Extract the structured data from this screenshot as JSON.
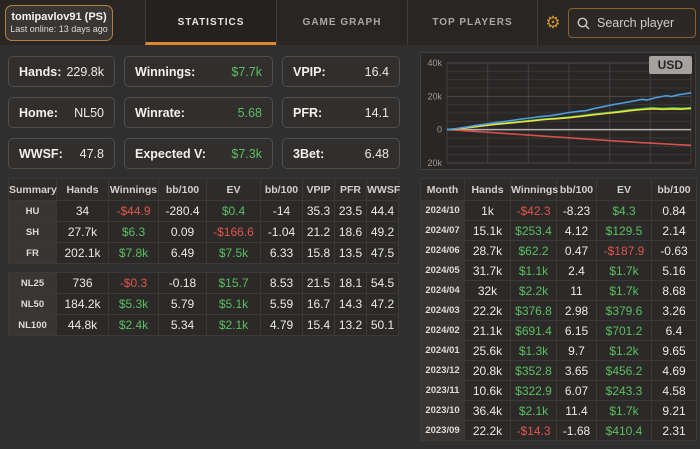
{
  "header": {
    "user": {
      "name": "tomipavlov91 (PS)",
      "last_online": "Last online: 13 days ago"
    },
    "tabs": [
      {
        "label": "STATISTICS",
        "active": true
      },
      {
        "label": "GAME GRAPH",
        "active": false
      },
      {
        "label": "TOP PLAYERS",
        "active": false
      }
    ],
    "gear_icon": "settings-gear",
    "search": {
      "placeholder": "Search player",
      "icon": "search-magnifier"
    }
  },
  "stats": [
    {
      "label": "Hands:",
      "value": "229.8k",
      "color": "white"
    },
    {
      "label": "Winnings:",
      "value": "$7.7k",
      "color": "green"
    },
    {
      "label": "VPIP:",
      "value": "16.4",
      "color": "white"
    },
    {
      "label": "Home:",
      "value": "NL50",
      "color": "white"
    },
    {
      "label": "Winrate:",
      "value": "5.68",
      "color": "green"
    },
    {
      "label": "PFR:",
      "value": "14.1",
      "color": "white"
    },
    {
      "label": "WWSF:",
      "value": "47.8",
      "color": "white"
    },
    {
      "label": "Expected V:",
      "value": "$7.3k",
      "color": "green"
    },
    {
      "label": "3Bet:",
      "value": "6.48",
      "color": "white"
    }
  ],
  "summary_table": {
    "headers": [
      "Summary",
      "Hands",
      "Winnings",
      "bb/100",
      "EV",
      "bb/100",
      "VPIP",
      "PFR",
      "WWSF"
    ],
    "money_cols": [
      2,
      4
    ],
    "blocks": [
      [
        [
          "HU",
          "34",
          "-$44.9",
          "-280.4",
          "$0.4",
          "-14",
          "35.3",
          "23.5",
          "44.4"
        ],
        [
          "SH",
          "27.7k",
          "$6.3",
          "0.09",
          "-$166.6",
          "-1.04",
          "21.2",
          "18.6",
          "49.2"
        ],
        [
          "FR",
          "202.1k",
          "$7.8k",
          "6.49",
          "$7.5k",
          "6.33",
          "15.8",
          "13.5",
          "47.5"
        ]
      ],
      [
        [
          "NL25",
          "736",
          "-$0.3",
          "-0.18",
          "$15.7",
          "8.53",
          "21.5",
          "18.1",
          "54.5"
        ],
        [
          "NL50",
          "184.2k",
          "$5.3k",
          "5.79",
          "$5.1k",
          "5.59",
          "16.7",
          "14.3",
          "47.2"
        ],
        [
          "NL100",
          "44.8k",
          "$2.4k",
          "5.34",
          "$2.1k",
          "4.79",
          "15.4",
          "13.2",
          "50.1"
        ]
      ]
    ]
  },
  "months_table": {
    "headers": [
      "Month",
      "Hands",
      "Winnings",
      "bb/100",
      "EV",
      "bb/100"
    ],
    "money_cols": [
      2,
      4
    ],
    "rows": [
      [
        "2024/10",
        "1k",
        "-$42.3",
        "-8.23",
        "$4.3",
        "0.84"
      ],
      [
        "2024/07",
        "15.1k",
        "$253.4",
        "4.12",
        "$129.5",
        "2.14"
      ],
      [
        "2024/06",
        "28.7k",
        "$62.2",
        "0.47",
        "-$187.9",
        "-0.63"
      ],
      [
        "2024/05",
        "31.7k",
        "$1.1k",
        "2.4",
        "$1.7k",
        "5.16"
      ],
      [
        "2024/04",
        "32k",
        "$2.2k",
        "11",
        "$1.7k",
        "8.68"
      ],
      [
        "2024/03",
        "22.2k",
        "$376.8",
        "2.98",
        "$379.6",
        "3.26"
      ],
      [
        "2024/02",
        "21.1k",
        "$691.4",
        "6.15",
        "$701.2",
        "6.4"
      ],
      [
        "2024/01",
        "25.6k",
        "$1.3k",
        "9.7",
        "$1.2k",
        "9.65"
      ],
      [
        "2023/12",
        "20.8k",
        "$352.8",
        "3.65",
        "$456.2",
        "4.69"
      ],
      [
        "2023/11",
        "10.6k",
        "$322.9",
        "6.07",
        "$243.3",
        "4.58"
      ],
      [
        "2023/10",
        "36.4k",
        "$2.1k",
        "11.4",
        "$1.7k",
        "9.21"
      ],
      [
        "2023/09",
        "22.2k",
        "-$14.3",
        "-1.68",
        "$410.4",
        "2.31"
      ]
    ]
  },
  "chart_data": {
    "type": "line",
    "title": "",
    "currency_badge": "USD",
    "legend": "none",
    "grid": true,
    "ylim": [
      -20000,
      40000
    ],
    "yticks": [
      {
        "label": "40k",
        "value": 40000
      },
      {
        "label": "20k",
        "value": 20000
      },
      {
        "label": "0",
        "value": 0
      },
      {
        "label": "20k",
        "value": -20000
      }
    ],
    "minor_grid_step": 5000,
    "vertical_divisions": 6,
    "series": [
      {
        "name": "red-line",
        "color": "#d5514b",
        "points": [
          [
            0,
            0
          ],
          [
            0.05,
            -400
          ],
          [
            0.1,
            -900
          ],
          [
            0.15,
            -1400
          ],
          [
            0.2,
            -1900
          ],
          [
            0.25,
            -2400
          ],
          [
            0.3,
            -2900
          ],
          [
            0.35,
            -3400
          ],
          [
            0.4,
            -3900
          ],
          [
            0.45,
            -4400
          ],
          [
            0.5,
            -4900
          ],
          [
            0.55,
            -5400
          ],
          [
            0.6,
            -5900
          ],
          [
            0.65,
            -6400
          ],
          [
            0.7,
            -6900
          ],
          [
            0.75,
            -7300
          ],
          [
            0.8,
            -7800
          ],
          [
            0.85,
            -8200
          ],
          [
            0.9,
            -8600
          ],
          [
            0.95,
            -9000
          ],
          [
            1,
            -9400
          ]
        ]
      },
      {
        "name": "green-line",
        "color": "#43b14b",
        "points": [
          [
            0,
            0
          ],
          [
            0.04,
            500
          ],
          [
            0.08,
            1200
          ],
          [
            0.12,
            2000
          ],
          [
            0.16,
            2700
          ],
          [
            0.2,
            3400
          ],
          [
            0.25,
            4100
          ],
          [
            0.3,
            4900
          ],
          [
            0.35,
            5600
          ],
          [
            0.4,
            6400
          ],
          [
            0.45,
            6900
          ],
          [
            0.5,
            7500
          ],
          [
            0.55,
            8400
          ],
          [
            0.6,
            9300
          ],
          [
            0.65,
            10100
          ],
          [
            0.7,
            10900
          ],
          [
            0.75,
            11900
          ],
          [
            0.8,
            12600
          ],
          [
            0.84,
            13200
          ],
          [
            0.87,
            12800
          ],
          [
            0.9,
            12900
          ],
          [
            0.93,
            13100
          ],
          [
            0.96,
            12800
          ],
          [
            1,
            13200
          ]
        ]
      },
      {
        "name": "yellow-line",
        "color": "#e8e340",
        "points": [
          [
            0,
            0
          ],
          [
            0.04,
            400
          ],
          [
            0.08,
            1100
          ],
          [
            0.12,
            1800
          ],
          [
            0.16,
            2500
          ],
          [
            0.2,
            3200
          ],
          [
            0.25,
            3900
          ],
          [
            0.3,
            4600
          ],
          [
            0.35,
            5300
          ],
          [
            0.4,
            6100
          ],
          [
            0.45,
            6600
          ],
          [
            0.5,
            7200
          ],
          [
            0.55,
            8000
          ],
          [
            0.6,
            8900
          ],
          [
            0.65,
            9700
          ],
          [
            0.7,
            10500
          ],
          [
            0.75,
            11400
          ],
          [
            0.8,
            12100
          ],
          [
            0.85,
            12500
          ],
          [
            0.88,
            12200
          ],
          [
            0.92,
            12400
          ],
          [
            0.96,
            12300
          ],
          [
            1,
            12700
          ]
        ]
      },
      {
        "name": "blue-line",
        "color": "#4e9be0",
        "points": [
          [
            0,
            0
          ],
          [
            0.04,
            700
          ],
          [
            0.08,
            1600
          ],
          [
            0.12,
            2600
          ],
          [
            0.16,
            3400
          ],
          [
            0.2,
            4300
          ],
          [
            0.25,
            5200
          ],
          [
            0.3,
            6300
          ],
          [
            0.34,
            7000
          ],
          [
            0.38,
            7800
          ],
          [
            0.42,
            8300
          ],
          [
            0.46,
            9200
          ],
          [
            0.5,
            10300
          ],
          [
            0.54,
            11000
          ],
          [
            0.57,
            11400
          ],
          [
            0.6,
            12600
          ],
          [
            0.64,
            13800
          ],
          [
            0.68,
            15000
          ],
          [
            0.72,
            16000
          ],
          [
            0.75,
            16800
          ],
          [
            0.78,
            17600
          ],
          [
            0.8,
            18200
          ],
          [
            0.82,
            17800
          ],
          [
            0.85,
            19000
          ],
          [
            0.88,
            19900
          ],
          [
            0.9,
            20400
          ],
          [
            0.92,
            19900
          ],
          [
            0.95,
            21000
          ],
          [
            0.97,
            21400
          ],
          [
            1,
            22100
          ]
        ]
      }
    ]
  },
  "colors": {
    "accent_orange": "#e0872b",
    "positive_green": "#5cbd60",
    "negative_red": "#e0554d",
    "page_bg": "#302f2f",
    "topbar_bg": "#282522"
  }
}
